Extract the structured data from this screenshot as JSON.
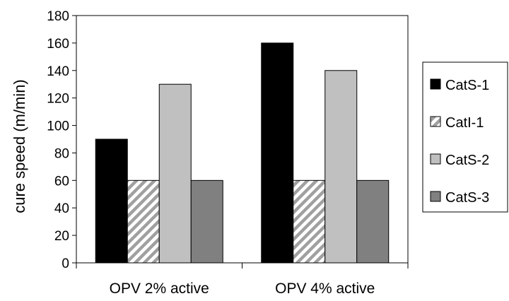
{
  "chart_data": {
    "type": "bar",
    "title": "",
    "xlabel": "",
    "ylabel": "cure speed (m/min)",
    "ylim": [
      0,
      180
    ],
    "yticks": [
      0,
      20,
      40,
      60,
      80,
      100,
      120,
      140,
      160,
      180
    ],
    "categories": [
      "OPV 2% active",
      "OPV 4% active"
    ],
    "series": [
      {
        "name": "CatS-1",
        "values": [
          90,
          160
        ],
        "color": "#000000",
        "pattern": "solid"
      },
      {
        "name": "CatI-1",
        "values": [
          60,
          60
        ],
        "color": "#ffffff",
        "pattern": "diagonal-hatch"
      },
      {
        "name": "CatS-2",
        "values": [
          130,
          140
        ],
        "color": "#c0c0c0",
        "pattern": "solid"
      },
      {
        "name": "CatS-3",
        "values": [
          60,
          60
        ],
        "color": "#808080",
        "pattern": "solid"
      }
    ],
    "grid": false,
    "legend": "right"
  }
}
